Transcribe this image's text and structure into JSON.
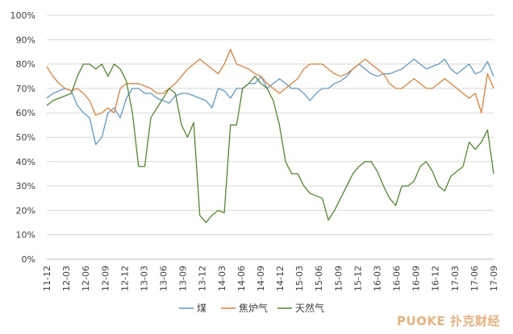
{
  "chart_data": {
    "type": "line",
    "title": "",
    "xlabel": "",
    "ylabel": "",
    "ylim": [
      0,
      100
    ],
    "y_unit": "%",
    "y_ticks": [
      "0%",
      "10%",
      "20%",
      "30%",
      "40%",
      "50%",
      "60%",
      "70%",
      "80%",
      "90%",
      "100%"
    ],
    "x_ticks": [
      "11-12",
      "12-03",
      "12-06",
      "12-09",
      "12-12",
      "13-03",
      "13-06",
      "13-09",
      "13-12",
      "14-03",
      "14-06",
      "14-09",
      "14-12",
      "15-03",
      "15-06",
      "15-09",
      "15-12",
      "16-03",
      "16-06",
      "16-09",
      "16-12",
      "17-03",
      "17-06",
      "17-09"
    ],
    "grid": "horizontal",
    "legend": "bottom",
    "series": [
      {
        "name": "煤",
        "color": "#5b9bd5",
        "values": [
          66,
          68,
          69,
          70,
          69,
          63,
          60,
          58,
          47,
          50,
          60,
          62,
          58,
          66,
          70,
          70,
          68,
          68,
          66,
          65,
          64,
          67,
          68,
          68,
          67,
          66,
          65,
          62,
          70,
          69,
          66,
          70,
          70,
          72,
          72,
          75,
          70,
          72,
          74,
          72,
          70,
          70,
          68,
          65,
          68,
          70,
          70,
          72,
          73,
          75,
          78,
          80,
          78,
          76,
          75,
          76,
          76,
          77,
          78,
          80,
          82,
          80,
          78,
          79,
          80,
          82,
          78,
          76,
          78,
          80,
          76,
          77,
          81,
          75
        ]
      },
      {
        "name": "焦炉气",
        "color": "#ed7d31",
        "values": [
          79,
          75,
          72,
          70,
          69,
          70,
          68,
          65,
          59,
          60,
          62,
          60,
          70,
          72,
          72,
          72,
          71,
          70,
          68,
          68,
          70,
          72,
          75,
          78,
          80,
          82,
          80,
          78,
          76,
          80,
          86,
          80,
          79,
          78,
          76,
          75,
          72,
          70,
          68,
          70,
          72,
          74,
          78,
          80,
          80,
          80,
          78,
          76,
          75,
          76,
          78,
          80,
          82,
          80,
          78,
          76,
          72,
          70,
          70,
          72,
          74,
          72,
          70,
          70,
          72,
          74,
          72,
          70,
          68,
          66,
          68,
          60,
          76,
          70
        ]
      },
      {
        "name": "天然气",
        "color": "#4e8b2a",
        "values": [
          63,
          65,
          66,
          67,
          68,
          75,
          80,
          80,
          78,
          80,
          75,
          80,
          78,
          73,
          60,
          38,
          38,
          58,
          62,
          66,
          70,
          68,
          55,
          50,
          56,
          18,
          15,
          18,
          20,
          19,
          55,
          55,
          70,
          72,
          75,
          72,
          70,
          65,
          55,
          40,
          35,
          35,
          30,
          27,
          26,
          25,
          16,
          20,
          25,
          30,
          35,
          38,
          40,
          40,
          36,
          30,
          25,
          22,
          30,
          30,
          32,
          38,
          40,
          36,
          30,
          28,
          34,
          36,
          38,
          48,
          45,
          48,
          53,
          35
        ]
      }
    ]
  }
}
